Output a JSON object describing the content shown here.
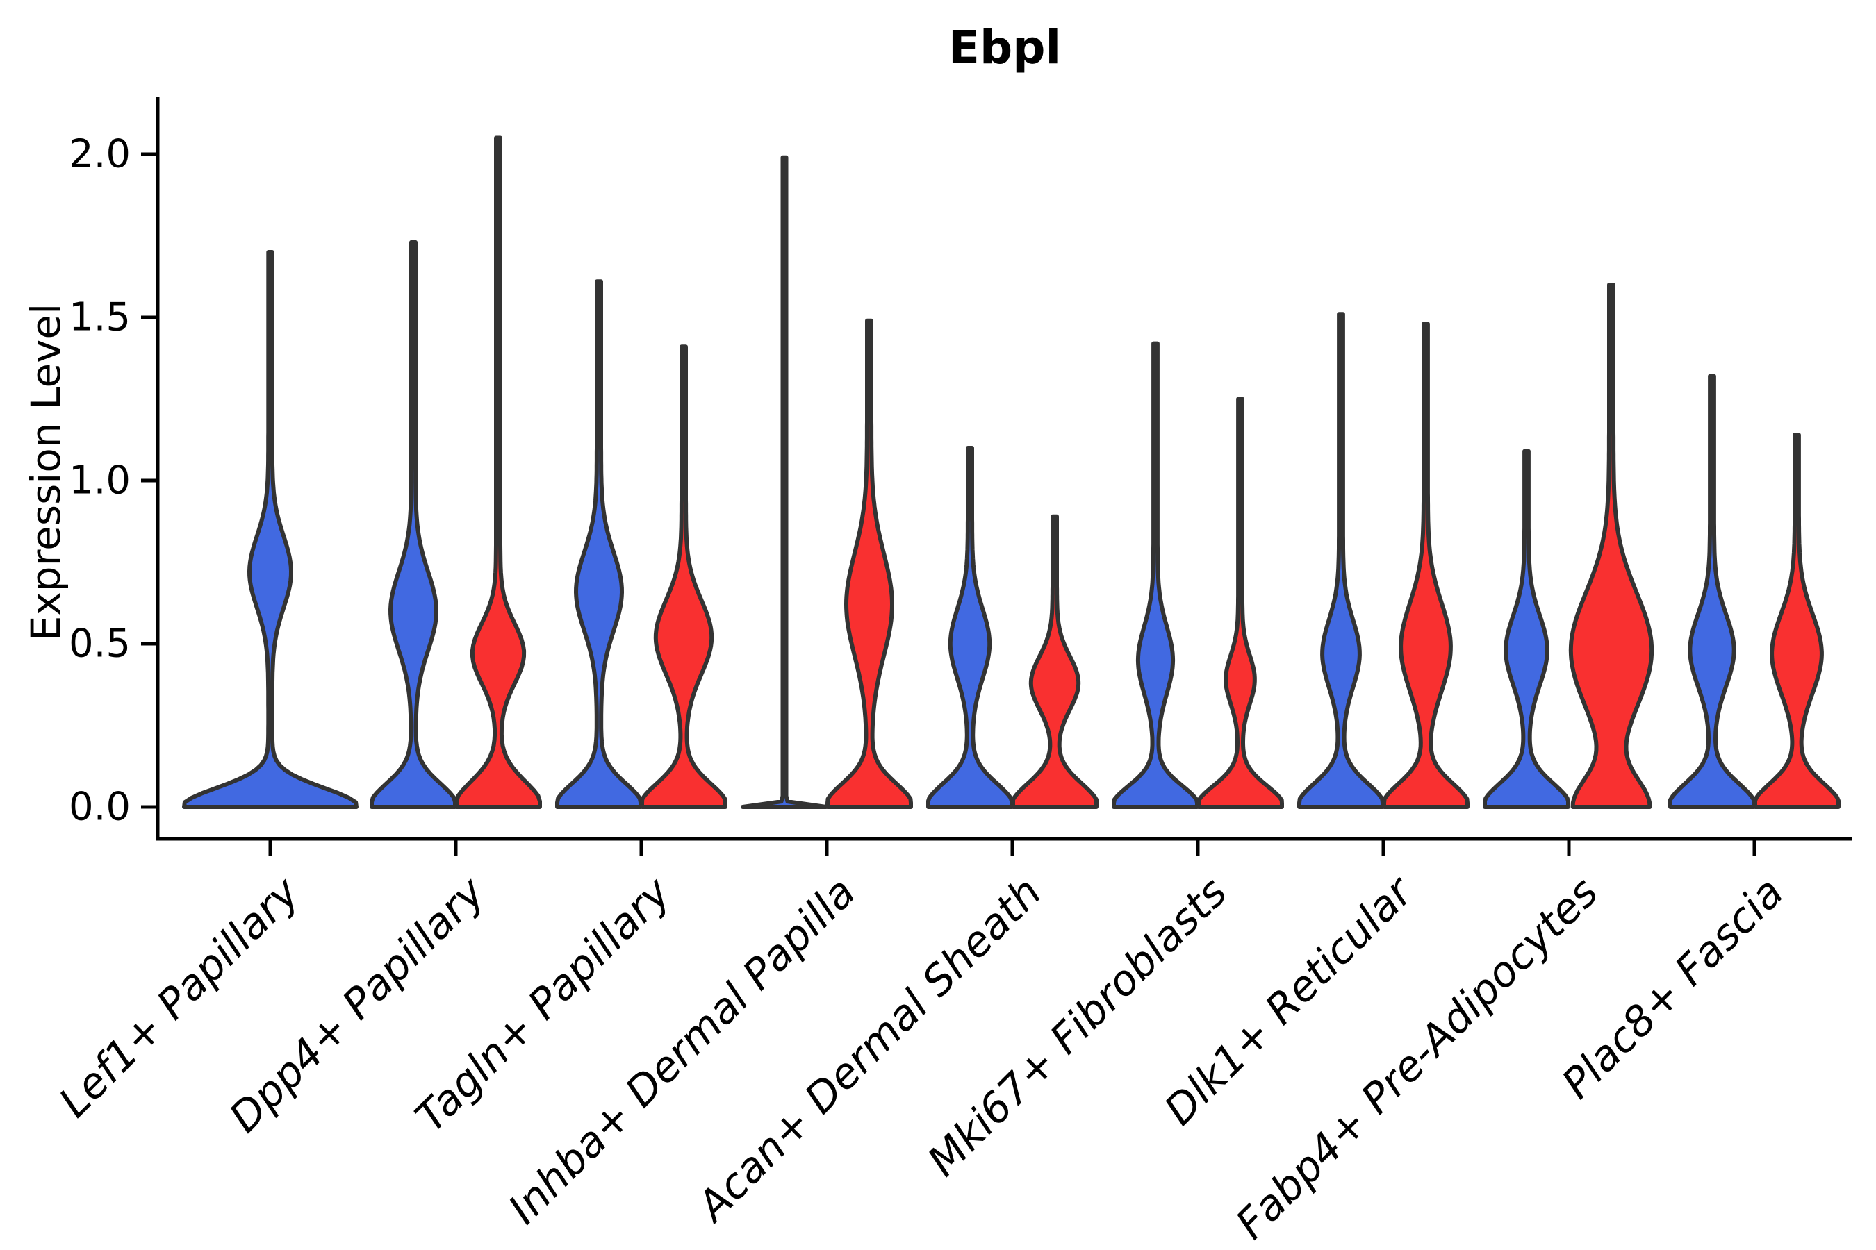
{
  "chart_data": {
    "type": "violin",
    "title": "Ebpl",
    "ylabel": "Expression Level",
    "xlabel": "",
    "ylim": [
      0.0,
      2.17
    ],
    "ytick_labels": [
      "0.0",
      "0.5",
      "1.0",
      "1.5",
      "2.0"
    ],
    "ytick_values": [
      0.0,
      0.5,
      1.0,
      1.5,
      2.0
    ],
    "grid": false,
    "legend": "none",
    "colors": {
      "blue": "#4169E1",
      "red": "#F93030",
      "outline": "#333333",
      "axis": "#000000"
    },
    "categories": [
      {
        "label": "Lef1+ Papillary",
        "violins": [
          {
            "color_key": "blue",
            "position": "center",
            "max_expression": 1.7,
            "profile": {
              "base_w": 1.0,
              "base_sigma": 0.082,
              "bulge_c": 0.72,
              "bulge_sigma": 0.155,
              "bulge_w": 0.22,
              "stem_w": 0.022
            }
          }
        ]
      },
      {
        "label": "Dpp4+ Papillary",
        "violins": [
          {
            "color_key": "blue",
            "position": "left",
            "max_expression": 1.73,
            "profile": {
              "base_w": 1.0,
              "base_sigma": 0.1,
              "bulge_c": 0.6,
              "bulge_sigma": 0.17,
              "bulge_w": 0.5,
              "stem_w": 0.05
            }
          },
          {
            "color_key": "red",
            "position": "right",
            "max_expression": 2.05,
            "profile": {
              "base_w": 1.0,
              "base_sigma": 0.11,
              "bulge_c": 0.47,
              "bulge_sigma": 0.13,
              "bulge_w": 0.57,
              "stem_w": 0.05
            }
          }
        ]
      },
      {
        "label": "Tagln+ Papillary",
        "violins": [
          {
            "color_key": "blue",
            "position": "left",
            "max_expression": 1.61,
            "profile": {
              "base_w": 1.0,
              "base_sigma": 0.1,
              "bulge_c": 0.66,
              "bulge_sigma": 0.17,
              "bulge_w": 0.5,
              "stem_w": 0.05
            }
          },
          {
            "color_key": "red",
            "position": "right",
            "max_expression": 1.41,
            "profile": {
              "base_w": 1.0,
              "base_sigma": 0.1,
              "bulge_c": 0.52,
              "bulge_sigma": 0.16,
              "bulge_w": 0.62,
              "stem_w": 0.05
            }
          }
        ]
      },
      {
        "label": "Inhba+ Dermal Papilla",
        "violins": [
          {
            "color_key": "blue",
            "position": "left",
            "max_expression": 1.99,
            "profile": {
              "base_w": 1.0,
              "base_sigma": 0.009,
              "bulge_c": 0.5,
              "bulge_sigma": 0.1,
              "bulge_w": 0.0,
              "stem_w": 0.042
            }
          },
          {
            "color_key": "red",
            "position": "right",
            "max_expression": 1.49,
            "profile": {
              "base_w": 1.0,
              "base_sigma": 0.1,
              "bulge_c": 0.62,
              "bulge_sigma": 0.22,
              "bulge_w": 0.5,
              "stem_w": 0.05
            }
          }
        ]
      },
      {
        "label": "Acan+ Dermal Sheath",
        "violins": [
          {
            "color_key": "blue",
            "position": "left",
            "max_expression": 1.1,
            "profile": {
              "base_w": 1.0,
              "base_sigma": 0.1,
              "bulge_c": 0.5,
              "bulge_sigma": 0.15,
              "bulge_w": 0.42,
              "stem_w": 0.05
            }
          },
          {
            "color_key": "red",
            "position": "right",
            "max_expression": 0.89,
            "profile": {
              "base_w": 1.0,
              "base_sigma": 0.1,
              "bulge_c": 0.38,
              "bulge_sigma": 0.115,
              "bulge_w": 0.52,
              "stem_w": 0.05
            }
          }
        ]
      },
      {
        "label": "Mki67+ Fibroblasts",
        "violins": [
          {
            "color_key": "blue",
            "position": "left",
            "max_expression": 1.42,
            "profile": {
              "base_w": 1.0,
              "base_sigma": 0.09,
              "bulge_c": 0.45,
              "bulge_sigma": 0.145,
              "bulge_w": 0.37,
              "stem_w": 0.048
            }
          },
          {
            "color_key": "red",
            "position": "right",
            "max_expression": 1.25,
            "profile": {
              "base_w": 1.0,
              "base_sigma": 0.09,
              "bulge_c": 0.39,
              "bulge_sigma": 0.105,
              "bulge_w": 0.3,
              "stem_w": 0.048
            }
          }
        ]
      },
      {
        "label": "Dlk1+ Reticular",
        "violins": [
          {
            "color_key": "blue",
            "position": "left",
            "max_expression": 1.51,
            "profile": {
              "base_w": 1.0,
              "base_sigma": 0.1,
              "bulge_c": 0.47,
              "bulge_sigma": 0.145,
              "bulge_w": 0.4,
              "stem_w": 0.048
            }
          },
          {
            "color_key": "red",
            "position": "right",
            "max_expression": 1.48,
            "profile": {
              "base_w": 1.0,
              "base_sigma": 0.1,
              "bulge_c": 0.49,
              "bulge_sigma": 0.19,
              "bulge_w": 0.55,
              "stem_w": 0.048
            }
          }
        ]
      },
      {
        "label": "Fabp4+ Pre-Adipocytes",
        "violins": [
          {
            "color_key": "blue",
            "position": "left",
            "max_expression": 1.09,
            "profile": {
              "base_w": 1.0,
              "base_sigma": 0.1,
              "bulge_c": 0.48,
              "bulge_sigma": 0.15,
              "bulge_w": 0.45,
              "stem_w": 0.048
            }
          },
          {
            "color_key": "red",
            "position": "right",
            "max_expression": 1.6,
            "profile": {
              "base_w": 0.85,
              "base_sigma": 0.12,
              "bulge_c": 0.48,
              "bulge_sigma": 0.25,
              "bulge_w": 0.92,
              "stem_w": 0.05
            }
          }
        ]
      },
      {
        "label": "Plac8+ Fascia",
        "violins": [
          {
            "color_key": "blue",
            "position": "left",
            "max_expression": 1.32,
            "profile": {
              "base_w": 1.0,
              "base_sigma": 0.1,
              "bulge_c": 0.48,
              "bulge_sigma": 0.155,
              "bulge_w": 0.48,
              "stem_w": 0.048
            }
          },
          {
            "color_key": "red",
            "position": "right",
            "max_expression": 1.14,
            "profile": {
              "base_w": 1.0,
              "base_sigma": 0.1,
              "bulge_c": 0.47,
              "bulge_sigma": 0.17,
              "bulge_w": 0.55,
              "stem_w": 0.048
            }
          }
        ]
      }
    ]
  }
}
